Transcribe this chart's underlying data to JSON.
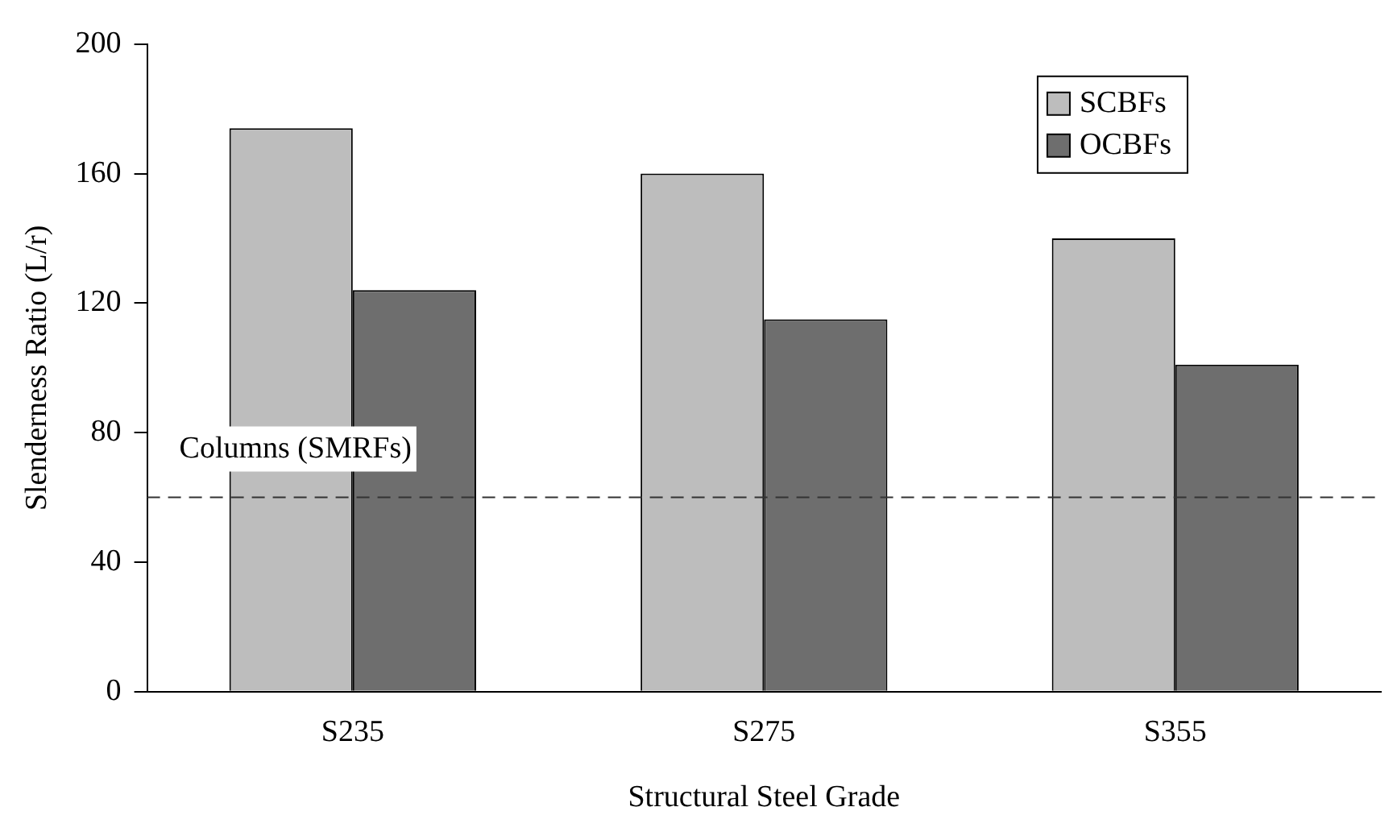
{
  "chart_data": {
    "type": "bar",
    "xlabel": "Structural Steel Grade",
    "ylabel": "Slenderness Ratio (L/r)",
    "categories": [
      "S235",
      "S275",
      "S355"
    ],
    "series": [
      {
        "name": "SCBFs",
        "color": "#bdbdbd",
        "values": [
          174,
          160,
          140
        ]
      },
      {
        "name": "OCBFs",
        "color": "#6e6e6e",
        "values": [
          124,
          115,
          101
        ]
      }
    ],
    "ylim": [
      0,
      200
    ],
    "yticks": [
      0,
      40,
      80,
      120,
      160,
      200
    ],
    "ref_lines": [
      {
        "axis": "y",
        "value": 60,
        "label": "Columns (SMRFs)",
        "color": "#333333",
        "line_style": "dashed"
      }
    ],
    "grid": false,
    "legend": "top right"
  }
}
